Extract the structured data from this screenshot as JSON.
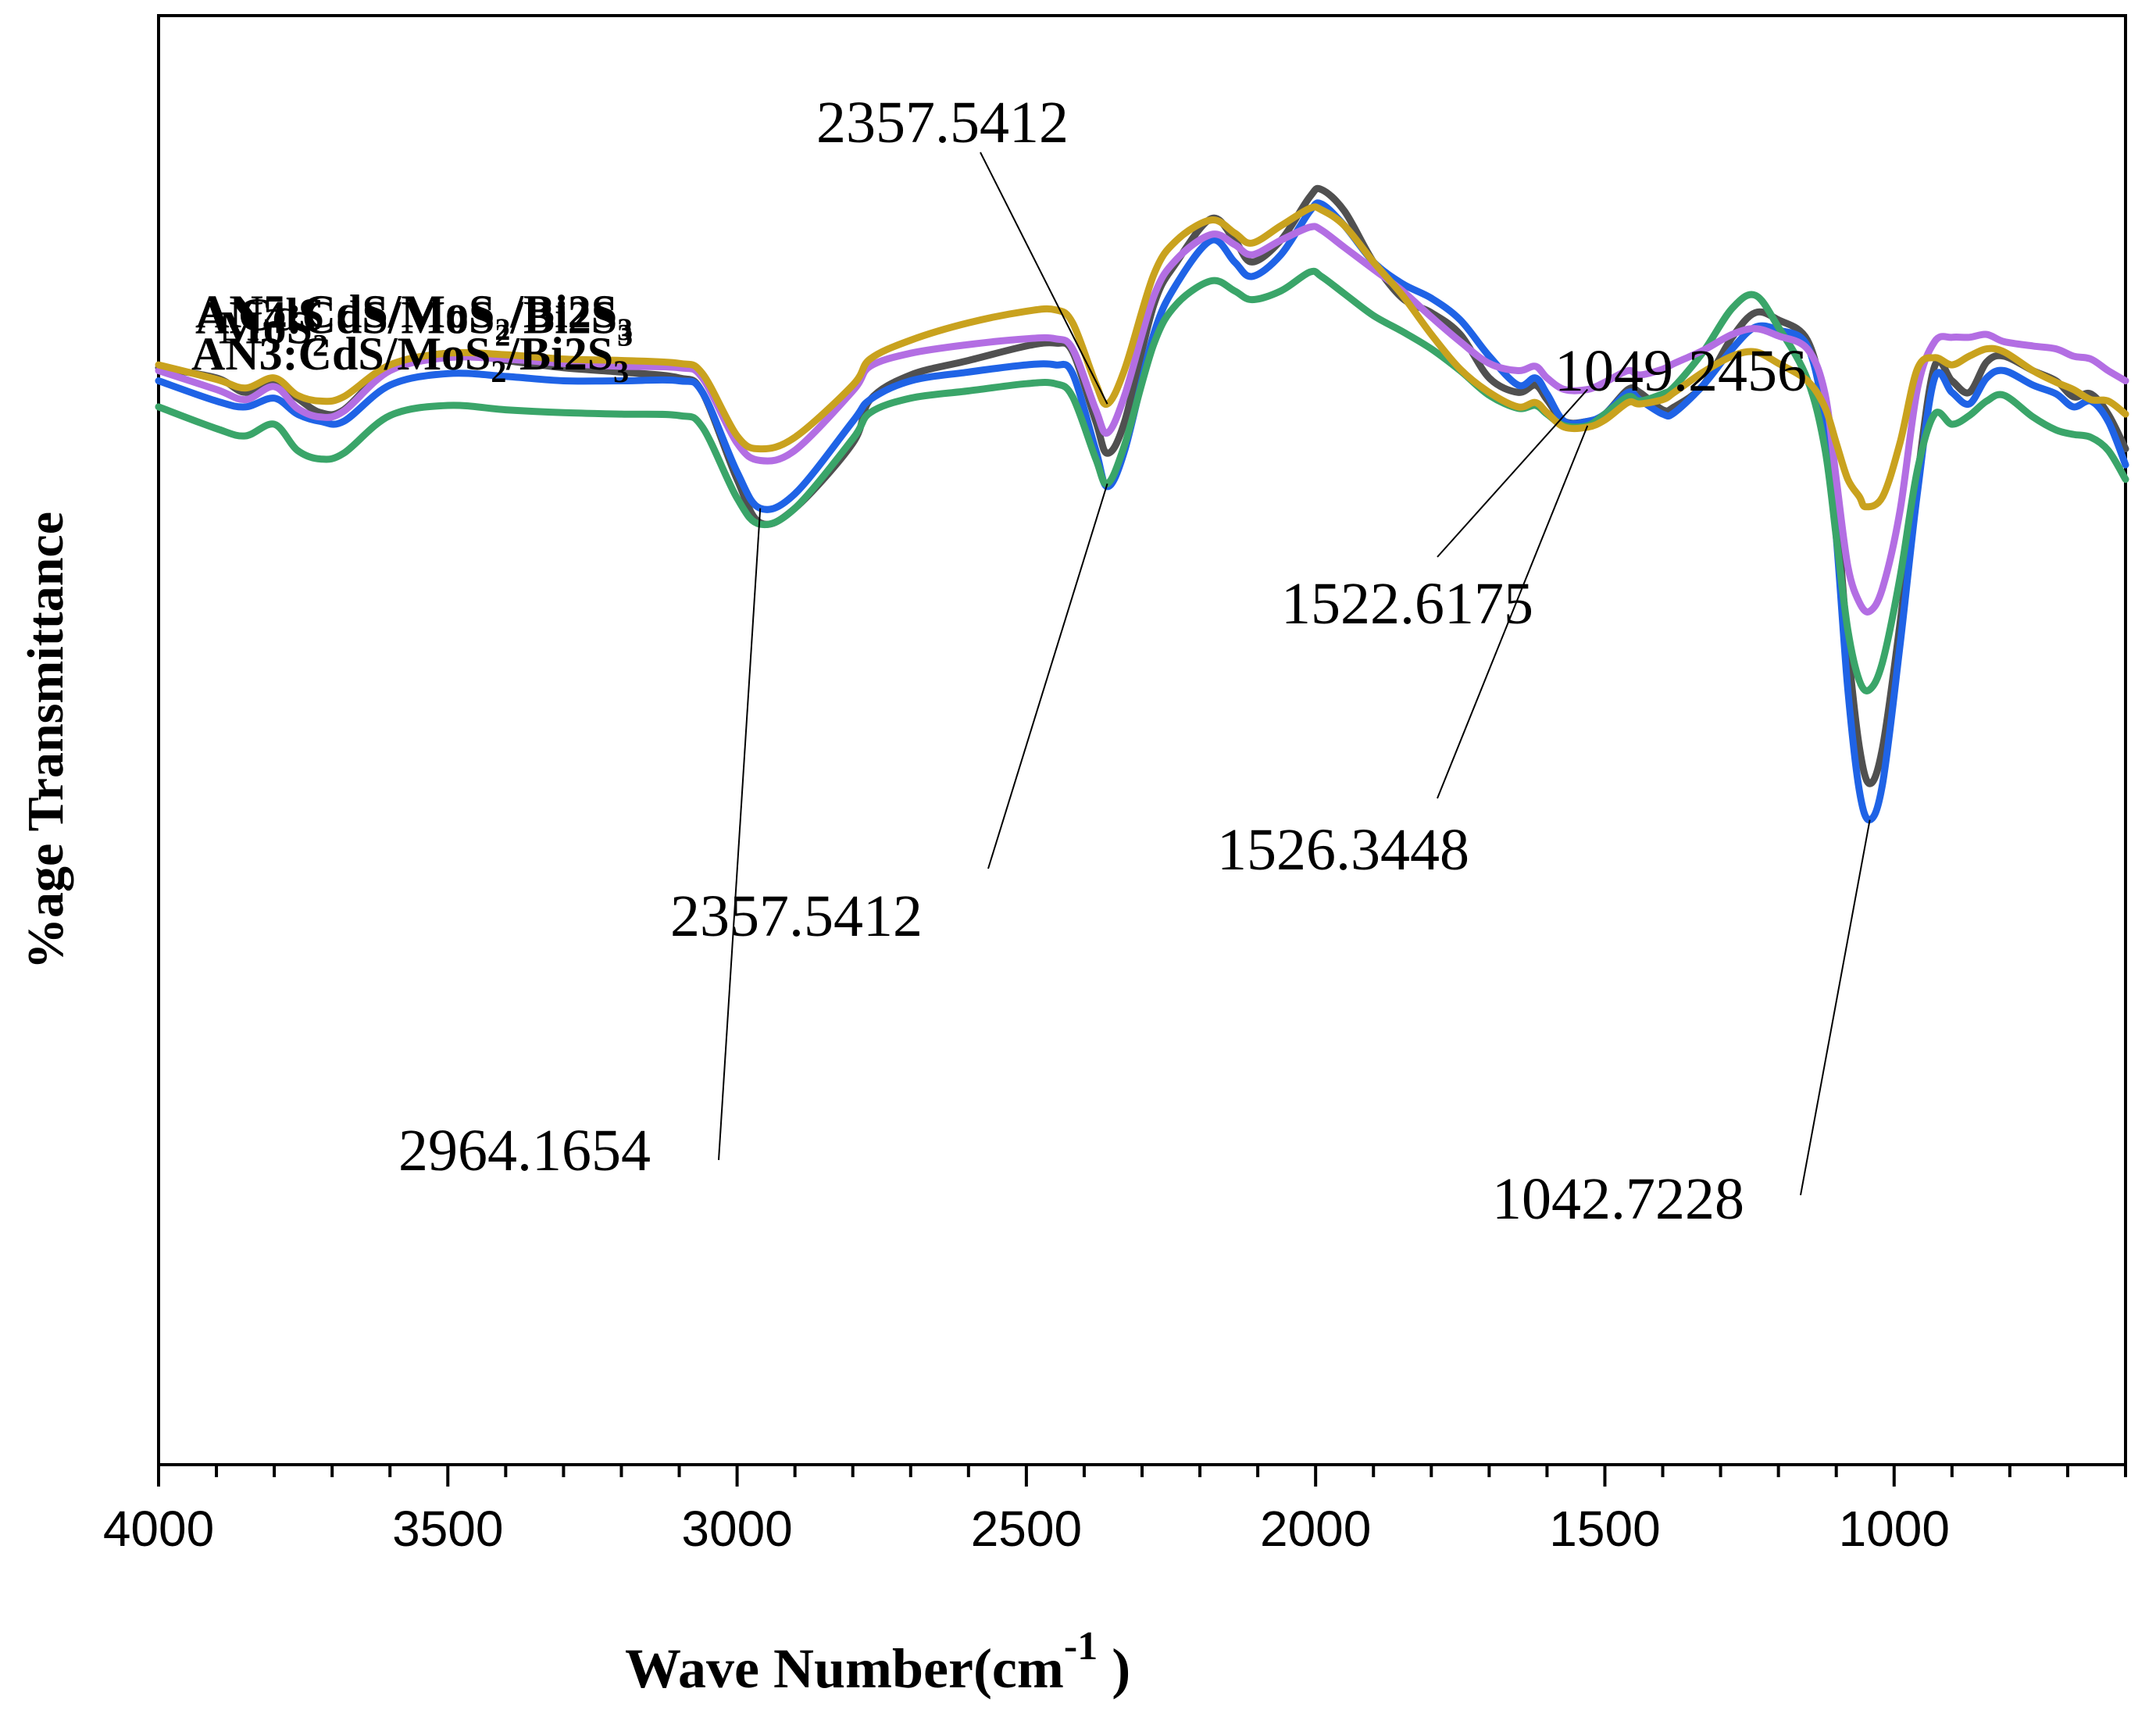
{
  "chart_data": {
    "type": "line",
    "title": "",
    "xlabel": "Wave Number(cm",
    "xlabel_sup": "-1",
    "xlabel_end": ")",
    "ylabel": "%age Transmittance",
    "xlim": [
      4000,
      600
    ],
    "ylim": [
      0,
      100
    ],
    "x_tick_labels": [
      "4000",
      "3500",
      "3000",
      "2500",
      "2000",
      "1500",
      "1000"
    ],
    "x_tick_values": [
      4000,
      3500,
      3000,
      2500,
      2000,
      1500,
      1000
    ],
    "series": [
      {
        "name": "CdS",
        "label_main": "CdS",
        "label_parts": [],
        "color": "#505050",
        "x": [
          4000,
          3900,
          3850,
          3800,
          3760,
          3720,
          3680,
          3600,
          3500,
          3400,
          3300,
          3200,
          3100,
          3060,
          3000,
          2960,
          2900,
          2800,
          2770,
          2700,
          2600,
          2500,
          2450,
          2420,
          2380,
          2360,
          2330,
          2280,
          2240,
          2180,
          2140,
          2110,
          2060,
          2010,
          1990,
          1950,
          1900,
          1850,
          1800,
          1750,
          1700,
          1650,
          1620,
          1600,
          1570,
          1530,
          1500,
          1460,
          1440,
          1400,
          1380,
          1330,
          1280,
          1240,
          1200,
          1150,
          1120,
          1100,
          1080,
          1060,
          1042,
          1020,
          990,
          960,
          930,
          900,
          870,
          840,
          810,
          760,
          720,
          690,
          660,
          630,
          600
        ],
        "y": [
          75.7,
          75.0,
          74.0,
          74.8,
          73.6,
          72.6,
          72.8,
          75.7,
          76.7,
          76.2,
          75.7,
          75.4,
          75.0,
          74.0,
          68.0,
          65.0,
          66.0,
          70.5,
          73.5,
          75.2,
          76.2,
          77.2,
          77.4,
          76.8,
          72.0,
          69.8,
          72.0,
          80.0,
          83.0,
          86.0,
          84.5,
          83.0,
          84.5,
          87.5,
          88.0,
          86.5,
          83.0,
          80.5,
          79.5,
          78.0,
          75.0,
          74.0,
          74.5,
          73.5,
          72.0,
          72.0,
          72.5,
          74.2,
          74.0,
          72.8,
          73.0,
          74.5,
          77.8,
          79.5,
          79.0,
          77.6,
          73.0,
          66.0,
          56.5,
          49.5,
          47.0,
          49.5,
          58.0,
          68.0,
          75.8,
          74.8,
          74.0,
          76.1,
          76.5,
          75.5,
          74.8,
          73.7,
          73.9,
          72.5,
          70.1
        ]
      },
      {
        "name": "MoS2",
        "label_main": "MoS",
        "label_parts": [
          "2",
          "",
          "",
          ""
        ],
        "color": "#1f63e6",
        "x": [
          4000,
          3900,
          3850,
          3800,
          3760,
          3720,
          3680,
          3600,
          3500,
          3400,
          3300,
          3200,
          3100,
          3060,
          3000,
          2960,
          2900,
          2800,
          2770,
          2700,
          2600,
          2500,
          2450,
          2420,
          2380,
          2360,
          2330,
          2280,
          2240,
          2180,
          2140,
          2110,
          2060,
          2010,
          1990,
          1950,
          1900,
          1850,
          1800,
          1750,
          1700,
          1650,
          1620,
          1600,
          1570,
          1530,
          1500,
          1460,
          1440,
          1400,
          1380,
          1330,
          1280,
          1240,
          1200,
          1150,
          1120,
          1100,
          1080,
          1060,
          1042,
          1020,
          990,
          960,
          930,
          900,
          870,
          840,
          810,
          760,
          720,
          690,
          660,
          630,
          600
        ],
        "y": [
          74.8,
          73.4,
          73.0,
          73.6,
          72.5,
          72.0,
          72.0,
          74.5,
          75.3,
          75.1,
          74.8,
          74.8,
          74.8,
          74.0,
          68.5,
          66.0,
          67.0,
          72.0,
          73.5,
          74.8,
          75.4,
          75.9,
          75.9,
          75.3,
          70.0,
          67.5,
          70.0,
          78.0,
          81.5,
          84.5,
          83.0,
          82.0,
          83.5,
          86.5,
          87.0,
          85.5,
          83.0,
          81.5,
          80.5,
          79.0,
          76.5,
          74.5,
          75.0,
          73.9,
          72.0,
          72.0,
          72.5,
          74.0,
          73.5,
          72.5,
          72.6,
          74.5,
          77.0,
          78.5,
          78.3,
          77.2,
          72.0,
          64.0,
          53.5,
          46.5,
          44.5,
          47.0,
          56.5,
          67.0,
          75.0,
          74.0,
          73.2,
          75.0,
          75.5,
          74.5,
          73.9,
          73.0,
          73.4,
          72.0,
          69.0
        ]
      },
      {
        "name": "AN3:CdS/MoS2/Bi2S3",
        "label_main": "AN3:CdS/MoS",
        "label_parts": [
          "2",
          "/Bi2S",
          "3",
          ""
        ],
        "color": "#3aa569",
        "x": [
          4000,
          3900,
          3850,
          3800,
          3760,
          3720,
          3680,
          3600,
          3500,
          3400,
          3300,
          3200,
          3100,
          3060,
          3000,
          2960,
          2900,
          2800,
          2770,
          2700,
          2600,
          2500,
          2450,
          2420,
          2380,
          2360,
          2330,
          2280,
          2240,
          2180,
          2140,
          2110,
          2060,
          2010,
          1990,
          1950,
          1900,
          1850,
          1800,
          1750,
          1700,
          1650,
          1620,
          1600,
          1570,
          1530,
          1500,
          1460,
          1440,
          1400,
          1380,
          1330,
          1280,
          1240,
          1200,
          1150,
          1120,
          1100,
          1080,
          1060,
          1042,
          1020,
          990,
          960,
          930,
          900,
          870,
          840,
          810,
          760,
          720,
          690,
          660,
          630,
          600
        ],
        "y": [
          73.0,
          71.5,
          71.0,
          71.8,
          70.0,
          69.4,
          69.8,
          72.4,
          73.1,
          72.8,
          72.6,
          72.5,
          72.4,
          71.6,
          66.7,
          64.9,
          66.0,
          70.8,
          72.6,
          73.6,
          74.1,
          74.6,
          74.6,
          73.7,
          69.4,
          67.7,
          70.4,
          77.3,
          80.1,
          81.7,
          81.0,
          80.4,
          81.0,
          82.3,
          82.0,
          80.8,
          79.3,
          78.2,
          77.0,
          75.5,
          73.8,
          72.9,
          73.1,
          72.5,
          71.7,
          71.7,
          72.5,
          73.7,
          73.4,
          73.9,
          74.4,
          76.8,
          79.8,
          80.7,
          78.5,
          74.9,
          70.2,
          64.0,
          57.6,
          54.1,
          53.5,
          55.4,
          61.2,
          68.6,
          72.5,
          71.8,
          72.4,
          73.4,
          73.8,
          72.3,
          71.4,
          71.1,
          70.9,
          70.0,
          68.0
        ]
      },
      {
        "name": "AN4:CdS/MoS2/Bi2S3",
        "label_main": "AN4:CdS/MoS",
        "label_parts": [
          "2",
          "/Bi2S",
          "3",
          ""
        ],
        "color": "#b36ee3",
        "x": [
          4000,
          3900,
          3850,
          3800,
          3760,
          3720,
          3680,
          3600,
          3500,
          3400,
          3300,
          3200,
          3100,
          3060,
          3000,
          2960,
          2900,
          2800,
          2770,
          2700,
          2600,
          2500,
          2450,
          2420,
          2380,
          2360,
          2330,
          2280,
          2240,
          2180,
          2140,
          2110,
          2060,
          2010,
          1990,
          1950,
          1900,
          1850,
          1800,
          1750,
          1700,
          1650,
          1620,
          1600,
          1570,
          1530,
          1500,
          1460,
          1440,
          1400,
          1380,
          1330,
          1280,
          1240,
          1200,
          1150,
          1120,
          1100,
          1080,
          1060,
          1042,
          1020,
          990,
          960,
          930,
          900,
          870,
          840,
          810,
          760,
          720,
          690,
          660,
          630,
          600
        ],
        "y": [
          75.5,
          74.2,
          73.5,
          74.4,
          72.9,
          72.3,
          72.7,
          75.5,
          76.4,
          76.3,
          76.0,
          75.8,
          75.7,
          75.0,
          70.5,
          69.3,
          70.0,
          74.1,
          75.8,
          76.7,
          77.3,
          77.7,
          77.7,
          77.0,
          72.8,
          71.2,
          73.8,
          80.6,
          83.2,
          84.9,
          84.2,
          83.5,
          84.5,
          85.4,
          85.2,
          84.0,
          82.5,
          81.0,
          79.2,
          77.5,
          76.0,
          75.5,
          75.8,
          75.0,
          74.2,
          74.2,
          74.7,
          75.5,
          75.2,
          75.6,
          76.0,
          76.9,
          78.0,
          78.4,
          77.9,
          77.0,
          74.0,
          68.0,
          62.0,
          59.5,
          58.9,
          60.5,
          65.8,
          74.2,
          77.5,
          77.8,
          77.8,
          78.0,
          77.5,
          77.2,
          77.0,
          76.5,
          76.3,
          75.5,
          74.8
        ]
      },
      {
        "name": "AN5:CdS/MoS2/Bi2S3",
        "label_main": "AN5:CdS/MoS",
        "label_parts": [
          "2",
          "/Bi2S",
          "3",
          ""
        ],
        "color": "#c9a21e",
        "x": [
          4000,
          3900,
          3850,
          3800,
          3760,
          3720,
          3680,
          3600,
          3500,
          3400,
          3300,
          3200,
          3100,
          3060,
          3000,
          2960,
          2900,
          2800,
          2770,
          2700,
          2600,
          2500,
          2450,
          2420,
          2380,
          2360,
          2330,
          2280,
          2240,
          2180,
          2140,
          2110,
          2060,
          2010,
          1990,
          1950,
          1900,
          1850,
          1800,
          1750,
          1700,
          1650,
          1620,
          1600,
          1570,
          1530,
          1500,
          1460,
          1440,
          1400,
          1380,
          1330,
          1280,
          1240,
          1200,
          1150,
          1120,
          1100,
          1080,
          1060,
          1049,
          1020,
          990,
          960,
          930,
          900,
          870,
          840,
          810,
          760,
          720,
          690,
          660,
          630,
          600
        ],
        "y": [
          75.9,
          74.9,
          74.3,
          75.0,
          73.8,
          73.4,
          73.7,
          75.9,
          76.7,
          76.6,
          76.3,
          76.2,
          76.0,
          75.3,
          71.0,
          70.1,
          70.9,
          74.5,
          76.3,
          77.6,
          78.8,
          79.6,
          79.7,
          78.8,
          74.6,
          73.2,
          75.6,
          82.1,
          84.5,
          85.9,
          85.0,
          84.3,
          85.5,
          86.7,
          86.6,
          85.5,
          83.0,
          80.7,
          78.0,
          75.6,
          74.0,
          73.0,
          73.3,
          72.6,
          71.6,
          71.6,
          72.1,
          73.3,
          73.2,
          73.5,
          74.0,
          75.4,
          76.5,
          76.8,
          76.0,
          74.8,
          73.0,
          70.5,
          68.0,
          66.8,
          66.1,
          66.8,
          70.5,
          75.6,
          76.4,
          75.9,
          76.5,
          77.0,
          76.8,
          75.5,
          74.7,
          74.2,
          73.5,
          73.4,
          72.5
        ]
      }
    ],
    "annotations": [
      {
        "text": "2357.5412",
        "series": "AN5:CdS/MoS2/Bi2S3",
        "peak_x": 2357
      },
      {
        "text": "1049.2456",
        "series": "AN5:CdS/MoS2/Bi2S3",
        "peak_x": 1049
      },
      {
        "text": "1522.6175",
        "series": "AN4:CdS/MoS2/Bi2S3",
        "peak_x": 1522
      },
      {
        "text": "2357.5412",
        "series": "AN3:CdS/MoS2/Bi2S3",
        "peak_x": 2357
      },
      {
        "text": "1526.3448",
        "series": "AN3:CdS/MoS2/Bi2S3",
        "peak_x": 1526
      },
      {
        "text": "2964.1654",
        "series": "MoS2",
        "peak_x": 2964
      },
      {
        "text": "1042.7228",
        "series": "MoS2",
        "peak_x": 1042
      }
    ]
  }
}
